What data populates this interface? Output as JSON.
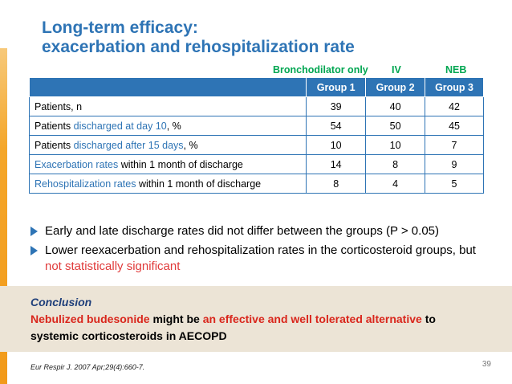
{
  "title": {
    "line1": "Long-term efficacy:",
    "line2": "exacerbation and rehospitalization rate"
  },
  "group_labels": {
    "bronchodilator": "Bronchodilator only",
    "iv": "IV",
    "neb": "NEB"
  },
  "table": {
    "headers": [
      "",
      "Group 1",
      "Group 2",
      "Group 3"
    ],
    "rows": [
      {
        "label_pre": "Patients, n",
        "label_hl": "",
        "label_post": "",
        "values": [
          "39",
          "40",
          "42"
        ]
      },
      {
        "label_pre": "Patients ",
        "label_hl": "discharged at day 10",
        "label_post": ", %",
        "values": [
          "54",
          "50",
          "45"
        ]
      },
      {
        "label_pre": "Patients ",
        "label_hl": "discharged after 15 days",
        "label_post": ", %",
        "values": [
          "10",
          "10",
          "7"
        ]
      },
      {
        "label_pre": "",
        "label_hl": "Exacerbation rates",
        "label_post": " within 1 month of discharge",
        "values": [
          "14",
          "8",
          "9"
        ]
      },
      {
        "label_pre": "",
        "label_hl": "Rehospitalization rates",
        "label_post": " within 1 month of discharge",
        "values": [
          "8",
          "4",
          "5"
        ]
      }
    ]
  },
  "bullets": [
    {
      "text": "Early and late discharge rates did not differ between the groups (P > 0.05)",
      "highlight": ""
    },
    {
      "text": "Lower reexacerbation and rehospitalization rates in the corticosteroid groups, but ",
      "highlight": "not statistically significant"
    }
  ],
  "conclusion": {
    "heading": "Conclusion",
    "part1": "Nebulized budesonide",
    "part2": " might be ",
    "part3": "an effective and well tolerated alternative",
    "part4": " to systemic corticosteroids in AECOPD"
  },
  "citation": "Eur Respir J. 2007 Apr;29(4):660-7.",
  "page_number": "39",
  "colors": {
    "title_blue": "#2e74b5",
    "group_green": "#00a651",
    "highlight_red": "#e03a3a",
    "conclusion_bg": "#ece4d6"
  }
}
